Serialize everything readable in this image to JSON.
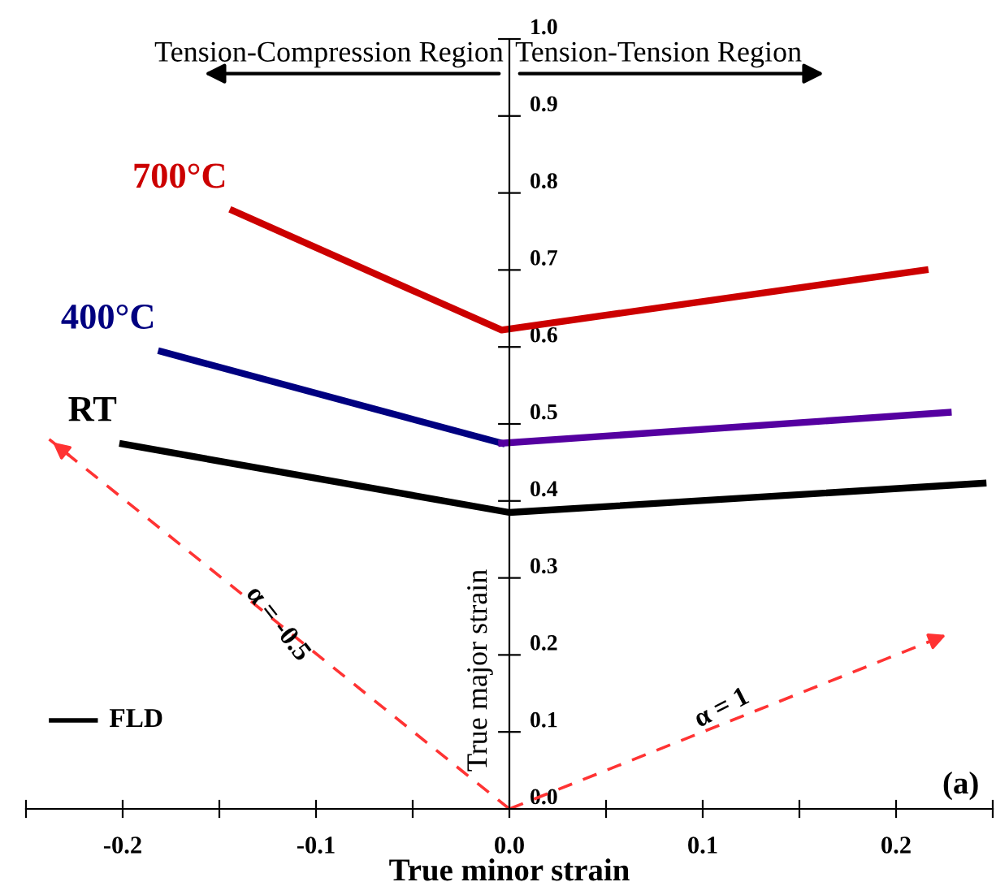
{
  "chart_data": {
    "type": "line",
    "xlabel": "True minor strain",
    "ylabel": "True major strain",
    "xlim": [
      -0.25,
      0.25
    ],
    "ylim": [
      0,
      1.0
    ],
    "xticks": [
      {
        "value": -0.25,
        "label": null
      },
      -0.2,
      {
        "value": -0.15,
        "label": null
      },
      -0.1,
      {
        "value": -0.05,
        "label": null
      },
      {
        "value": 0.0,
        "label": "0.0"
      },
      {
        "value": 0.05,
        "label": null
      },
      0.1,
      {
        "value": 0.15,
        "label": null
      },
      0.2,
      {
        "value": 0.25,
        "label": null
      }
    ],
    "yticks": [
      {
        "value": 0.0,
        "label": "0.0"
      },
      0.1,
      0.2,
      0.3,
      0.4,
      0.5,
      0.6,
      0.7,
      0.8,
      0.9,
      {
        "value": 1.0,
        "label": "1.0"
      }
    ],
    "grid": false,
    "legend": false,
    "marker": "none",
    "series": [
      {
        "name": "700°C",
        "color": "#cc0000",
        "x": [
          -0.143,
          -0.004,
          0.215
        ],
        "values": [
          0.777,
          0.622,
          0.7
        ]
      },
      {
        "name": "400°C",
        "color": "#000080",
        "x": [
          -0.18,
          -0.004
        ],
        "values": [
          0.594,
          0.475
        ]
      },
      {
        "color": "#5500a0",
        "x": [
          -0.004,
          0.227
        ],
        "values": [
          0.475,
          0.515
        ]
      },
      {
        "name": "RT",
        "color": "#000000",
        "x": [
          -0.2,
          0.0,
          0.245
        ],
        "values": [
          0.474,
          0.385,
          0.423
        ]
      },
      {
        "color": "#ff3333",
        "line_style": "dashed",
        "x": [
          0.0,
          -0.238
        ],
        "values": [
          0.0,
          0.48
        ]
      },
      {
        "color": "#ff3333",
        "line_style": "dashed",
        "x": [
          0.0,
          0.228
        ],
        "values": [
          0.0,
          0.228
        ]
      }
    ],
    "annotations": [
      "α = -0.5",
      "α = 1",
      "Tension-Compression Region",
      "Tension-Tension Region",
      "FLD",
      "(a)"
    ]
  }
}
